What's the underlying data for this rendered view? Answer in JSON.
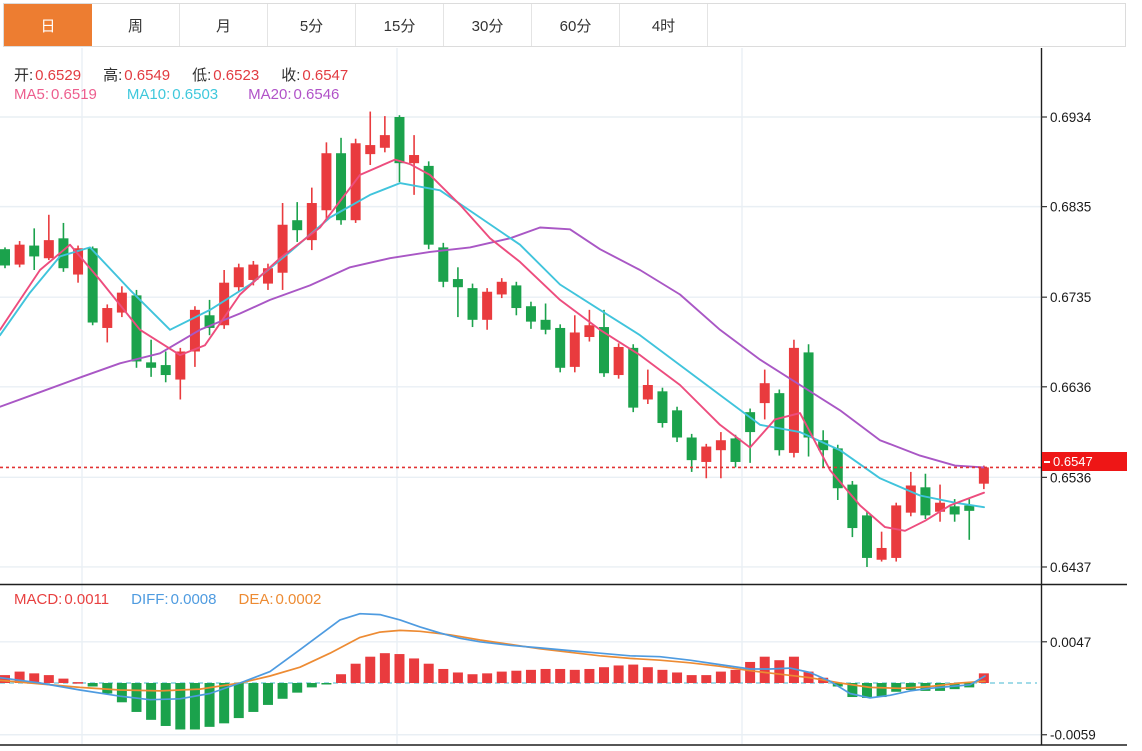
{
  "tabs": {
    "items": [
      {
        "name": "day",
        "label": "日",
        "active": true
      },
      {
        "name": "week",
        "label": "周",
        "active": false
      },
      {
        "name": "month",
        "label": "月",
        "active": false
      },
      {
        "name": "5min",
        "label": "5分",
        "active": false
      },
      {
        "name": "15min",
        "label": "15分",
        "active": false
      },
      {
        "name": "30min",
        "label": "30分",
        "active": false
      },
      {
        "name": "60min",
        "label": "60分",
        "active": false
      },
      {
        "name": "4hour",
        "label": "4时",
        "active": false
      }
    ],
    "active_color": "#ED7D31"
  },
  "ohlc_bar": {
    "label_color": "#2f2f2f",
    "value_color": "#E23B41",
    "items": [
      {
        "label": "开:",
        "value": "0.6529"
      },
      {
        "label": "高:",
        "value": "0.6549"
      },
      {
        "label": "低:",
        "value": "0.6523"
      },
      {
        "label": "收:",
        "value": "0.6547"
      }
    ]
  },
  "ma_bar": {
    "items": [
      {
        "label": "MA5:",
        "value": "0.6519",
        "color": "#ED5E8E"
      },
      {
        "label": "MA10:",
        "value": "0.6503",
        "color": "#3FC8DC"
      },
      {
        "label": "MA20:",
        "value": "0.6546",
        "color": "#B153C8"
      }
    ]
  },
  "macd_bar": {
    "items": [
      {
        "label": "MACD:",
        "value": "0.0011",
        "color": "#E84040"
      },
      {
        "label": "DIFF:",
        "value": "0.0008",
        "color": "#4E9BE0"
      },
      {
        "label": "DEA:",
        "value": "0.0002",
        "color": "#ED8B33"
      }
    ]
  },
  "price_tag": {
    "value": "0.6547",
    "price": 0.6547,
    "bg_color": "#EE1616"
  },
  "axes": {
    "main_tick_labels": [
      "0.6934",
      "0.6835",
      "0.6735",
      "0.6636",
      "0.6536",
      "0.6437"
    ],
    "macd_tick_labels": [
      "0.0047",
      "-0.0059"
    ]
  },
  "colors": {
    "up": "#E93B3E",
    "down": "#1BA24C",
    "ma5": "#ED4D7E",
    "ma10": "#40C4DC",
    "ma20": "#A957C5",
    "diff": "#4E9BE0",
    "dea": "#ED8B33",
    "grid": "#E9EFF4",
    "frame": "#1F1F1F",
    "dashed_price": "#E23232",
    "zero_dash": "#82CFE0"
  },
  "chart_data": {
    "type": "candlestick",
    "indicator": "MACD",
    "price_axis_range": [
      0.6437,
      0.6934
    ],
    "macd_axis_range": [
      -0.0059,
      0.0047
    ],
    "last_price": 0.6547,
    "candles_ohlc": [
      [
        0.6788,
        0.679,
        0.6767,
        0.677
      ],
      [
        0.6771,
        0.6797,
        0.6768,
        0.6793
      ],
      [
        0.6792,
        0.6811,
        0.6765,
        0.678
      ],
      [
        0.6778,
        0.6826,
        0.6776,
        0.6798
      ],
      [
        0.68,
        0.6817,
        0.6763,
        0.6767
      ],
      [
        0.676,
        0.6792,
        0.6751,
        0.6789
      ],
      [
        0.6789,
        0.6791,
        0.6704,
        0.6707
      ],
      [
        0.6701,
        0.6727,
        0.6685,
        0.6723
      ],
      [
        0.6718,
        0.6747,
        0.6713,
        0.674
      ],
      [
        0.6737,
        0.6743,
        0.6657,
        0.6664
      ],
      [
        0.6663,
        0.6688,
        0.6647,
        0.6657
      ],
      [
        0.666,
        0.6675,
        0.6641,
        0.6649
      ],
      [
        0.6644,
        0.6679,
        0.6622,
        0.6675
      ],
      [
        0.6675,
        0.6725,
        0.6658,
        0.6721
      ],
      [
        0.6715,
        0.6732,
        0.6693,
        0.6701
      ],
      [
        0.6704,
        0.6765,
        0.67,
        0.6751
      ],
      [
        0.6746,
        0.6772,
        0.6741,
        0.6768
      ],
      [
        0.6754,
        0.6775,
        0.6748,
        0.6771
      ],
      [
        0.675,
        0.6772,
        0.6743,
        0.6767
      ],
      [
        0.6762,
        0.6839,
        0.6743,
        0.6815
      ],
      [
        0.682,
        0.684,
        0.6796,
        0.6809
      ],
      [
        0.6798,
        0.6856,
        0.6787,
        0.6839
      ],
      [
        0.6831,
        0.6906,
        0.682,
        0.6894
      ],
      [
        0.6894,
        0.6911,
        0.6815,
        0.682
      ],
      [
        0.682,
        0.691,
        0.6817,
        0.6905
      ],
      [
        0.6893,
        0.694,
        0.6881,
        0.6903
      ],
      [
        0.69,
        0.6935,
        0.6895,
        0.6914
      ],
      [
        0.6934,
        0.6936,
        0.6862,
        0.6883
      ],
      [
        0.6883,
        0.6914,
        0.6848,
        0.6892
      ],
      [
        0.688,
        0.6885,
        0.6788,
        0.6793
      ],
      [
        0.679,
        0.6795,
        0.6746,
        0.6752
      ],
      [
        0.6755,
        0.6768,
        0.6713,
        0.6746
      ],
      [
        0.6745,
        0.675,
        0.6702,
        0.671
      ],
      [
        0.671,
        0.6745,
        0.6699,
        0.6741
      ],
      [
        0.6738,
        0.6756,
        0.6734,
        0.6752
      ],
      [
        0.6748,
        0.6752,
        0.6715,
        0.6723
      ],
      [
        0.6725,
        0.673,
        0.67,
        0.6708
      ],
      [
        0.671,
        0.6728,
        0.6694,
        0.6699
      ],
      [
        0.6701,
        0.6705,
        0.6652,
        0.6657
      ],
      [
        0.6658,
        0.6715,
        0.6652,
        0.6696
      ],
      [
        0.6691,
        0.6721,
        0.6686,
        0.6704
      ],
      [
        0.6702,
        0.6721,
        0.6647,
        0.6651
      ],
      [
        0.6649,
        0.6684,
        0.6645,
        0.668
      ],
      [
        0.6679,
        0.6683,
        0.6608,
        0.6613
      ],
      [
        0.6622,
        0.6655,
        0.6617,
        0.6638
      ],
      [
        0.6631,
        0.6635,
        0.6591,
        0.6596
      ],
      [
        0.661,
        0.6614,
        0.6575,
        0.658
      ],
      [
        0.658,
        0.6584,
        0.6542,
        0.6555
      ],
      [
        0.6553,
        0.6573,
        0.6535,
        0.657
      ],
      [
        0.6566,
        0.6586,
        0.6535,
        0.6577
      ],
      [
        0.6579,
        0.6583,
        0.6547,
        0.6553
      ],
      [
        0.6608,
        0.6612,
        0.6552,
        0.6586
      ],
      [
        0.6618,
        0.6655,
        0.66,
        0.664
      ],
      [
        0.6629,
        0.6633,
        0.656,
        0.6566
      ],
      [
        0.6563,
        0.6688,
        0.6558,
        0.6679
      ],
      [
        0.6674,
        0.6683,
        0.6559,
        0.658
      ],
      [
        0.6577,
        0.6588,
        0.6547,
        0.6566
      ],
      [
        0.6568,
        0.6572,
        0.6511,
        0.6524
      ],
      [
        0.6528,
        0.6532,
        0.647,
        0.648
      ],
      [
        0.6494,
        0.6498,
        0.6437,
        0.6447
      ],
      [
        0.6445,
        0.6476,
        0.6443,
        0.6458
      ],
      [
        0.6447,
        0.6508,
        0.6443,
        0.6505
      ],
      [
        0.6497,
        0.6542,
        0.6493,
        0.6527
      ],
      [
        0.6525,
        0.654,
        0.649,
        0.6494
      ],
      [
        0.6498,
        0.6528,
        0.6487,
        0.6508
      ],
      [
        0.6504,
        0.6512,
        0.6487,
        0.6495
      ],
      [
        0.6505,
        0.6512,
        0.6467,
        0.6499
      ],
      [
        0.6529,
        0.6549,
        0.6523,
        0.6547
      ]
    ],
    "macd_histogram": [
      0.0009,
      0.0013,
      0.0011,
      0.0009,
      0.0005,
      0.0001,
      -0.0004,
      -0.0012,
      -0.0022,
      -0.0033,
      -0.0042,
      -0.0049,
      -0.0053,
      -0.0053,
      -0.005,
      -0.0046,
      -0.004,
      -0.0033,
      -0.0025,
      -0.0018,
      -0.0011,
      -0.0005,
      -0.0001,
      0.001,
      0.0022,
      0.003,
      0.0034,
      0.0033,
      0.0028,
      0.0022,
      0.0016,
      0.0012,
      0.001,
      0.0011,
      0.0013,
      0.0014,
      0.0015,
      0.0016,
      0.0016,
      0.0015,
      0.0016,
      0.0018,
      0.002,
      0.0021,
      0.0018,
      0.0015,
      0.0012,
      0.0009,
      0.0009,
      0.0013,
      0.0015,
      0.0024,
      0.003,
      0.0026,
      0.003,
      0.0013,
      0.0006,
      -0.0004,
      -0.0016,
      -0.0017,
      -0.0016,
      -0.001,
      -0.0008,
      -0.0009,
      -0.0009,
      -0.0007,
      -0.0005,
      0.0011
    ],
    "overlays": {
      "ma5": [
        [
          0,
          0.6699
        ],
        [
          40,
          0.6765
        ],
        [
          70,
          0.6793
        ],
        [
          100,
          0.6754
        ],
        [
          140,
          0.6699
        ],
        [
          180,
          0.6671
        ],
        [
          205,
          0.6682
        ],
        [
          240,
          0.6738
        ],
        [
          280,
          0.6778
        ],
        [
          320,
          0.6812
        ],
        [
          360,
          0.687
        ],
        [
          395,
          0.6887
        ],
        [
          410,
          0.6882
        ],
        [
          430,
          0.687
        ],
        [
          460,
          0.6837
        ],
        [
          490,
          0.68
        ],
        [
          520,
          0.6774
        ],
        [
          560,
          0.6732
        ],
        [
          600,
          0.6699
        ],
        [
          640,
          0.6671
        ],
        [
          680,
          0.6638
        ],
        [
          720,
          0.6594
        ],
        [
          750,
          0.6569
        ],
        [
          775,
          0.66
        ],
        [
          800,
          0.6607
        ],
        [
          830,
          0.6544
        ],
        [
          860,
          0.6505
        ],
        [
          885,
          0.6481
        ],
        [
          905,
          0.6477
        ],
        [
          925,
          0.6488
        ],
        [
          950,
          0.6505
        ],
        [
          984,
          0.6519
        ]
      ],
      "ma10": [
        [
          0,
          0.6693
        ],
        [
          30,
          0.674
        ],
        [
          60,
          0.678
        ],
        [
          90,
          0.679
        ],
        [
          130,
          0.6743
        ],
        [
          170,
          0.6699
        ],
        [
          210,
          0.6721
        ],
        [
          250,
          0.6749
        ],
        [
          290,
          0.6785
        ],
        [
          330,
          0.6823
        ],
        [
          370,
          0.6848
        ],
        [
          400,
          0.6861
        ],
        [
          440,
          0.6853
        ],
        [
          480,
          0.6823
        ],
        [
          520,
          0.6793
        ],
        [
          560,
          0.6749
        ],
        [
          600,
          0.6721
        ],
        [
          640,
          0.6693
        ],
        [
          680,
          0.666
        ],
        [
          720,
          0.6627
        ],
        [
          760,
          0.6594
        ],
        [
          800,
          0.6586
        ],
        [
          840,
          0.6566
        ],
        [
          880,
          0.6535
        ],
        [
          920,
          0.6516
        ],
        [
          955,
          0.6508
        ],
        [
          984,
          0.6503
        ]
      ],
      "ma20": [
        [
          0,
          0.6614
        ],
        [
          40,
          0.663
        ],
        [
          82,
          0.6647
        ],
        [
          120,
          0.6662
        ],
        [
          160,
          0.6673
        ],
        [
          200,
          0.6699
        ],
        [
          240,
          0.6717
        ],
        [
          270,
          0.6732
        ],
        [
          310,
          0.6748
        ],
        [
          350,
          0.6768
        ],
        [
          390,
          0.6778
        ],
        [
          430,
          0.6785
        ],
        [
          470,
          0.679
        ],
        [
          510,
          0.68
        ],
        [
          540,
          0.6812
        ],
        [
          570,
          0.681
        ],
        [
          600,
          0.6788
        ],
        [
          640,
          0.6765
        ],
        [
          680,
          0.6738
        ],
        [
          720,
          0.6699
        ],
        [
          760,
          0.6666
        ],
        [
          800,
          0.6638
        ],
        [
          840,
          0.661
        ],
        [
          880,
          0.6577
        ],
        [
          920,
          0.656
        ],
        [
          955,
          0.6549
        ],
        [
          984,
          0.6547
        ]
      ],
      "diff": [
        [
          0,
          0.0006
        ],
        [
          40,
          0.0
        ],
        [
          80,
          -0.0008
        ],
        [
          120,
          -0.0015
        ],
        [
          150,
          -0.0019
        ],
        [
          180,
          -0.0018
        ],
        [
          210,
          -0.0012
        ],
        [
          240,
          0.0
        ],
        [
          270,
          0.0013
        ],
        [
          300,
          0.0038
        ],
        [
          320,
          0.0055
        ],
        [
          340,
          0.0072
        ],
        [
          360,
          0.0079
        ],
        [
          380,
          0.0078
        ],
        [
          400,
          0.0072
        ],
        [
          420,
          0.0064
        ],
        [
          440,
          0.0057
        ],
        [
          460,
          0.0051
        ],
        [
          480,
          0.0047
        ],
        [
          510,
          0.0043
        ],
        [
          540,
          0.004
        ],
        [
          570,
          0.0037
        ],
        [
          600,
          0.0034
        ],
        [
          630,
          0.0031
        ],
        [
          660,
          0.003
        ],
        [
          690,
          0.0026
        ],
        [
          720,
          0.0021
        ],
        [
          750,
          0.0016
        ],
        [
          770,
          0.0016
        ],
        [
          790,
          0.0017
        ],
        [
          810,
          0.0012
        ],
        [
          830,
          0.0002
        ],
        [
          850,
          -0.0012
        ],
        [
          870,
          -0.0017
        ],
        [
          890,
          -0.0014
        ],
        [
          910,
          -0.0009
        ],
        [
          930,
          -0.0006
        ],
        [
          950,
          -0.0004
        ],
        [
          970,
          -0.0002
        ],
        [
          985,
          0.0008
        ]
      ],
      "dea": [
        [
          0,
          0.0003
        ],
        [
          40,
          -0.0001
        ],
        [
          80,
          -0.0005
        ],
        [
          120,
          -0.0008
        ],
        [
          160,
          -0.0009
        ],
        [
          200,
          -0.0007
        ],
        [
          240,
          0.0
        ],
        [
          270,
          0.0008
        ],
        [
          300,
          0.0018
        ],
        [
          330,
          0.0034
        ],
        [
          360,
          0.0052
        ],
        [
          380,
          0.0058
        ],
        [
          400,
          0.006
        ],
        [
          420,
          0.0059
        ],
        [
          450,
          0.0055
        ],
        [
          480,
          0.0049
        ],
        [
          510,
          0.0044
        ],
        [
          540,
          0.0039
        ],
        [
          570,
          0.0035
        ],
        [
          600,
          0.0031
        ],
        [
          630,
          0.0028
        ],
        [
          660,
          0.0026
        ],
        [
          690,
          0.0023
        ],
        [
          720,
          0.0019
        ],
        [
          750,
          0.0014
        ],
        [
          780,
          0.001
        ],
        [
          810,
          0.0006
        ],
        [
          840,
          0.0
        ],
        [
          870,
          -0.0005
        ],
        [
          900,
          -0.0006
        ],
        [
          930,
          -0.0004
        ],
        [
          960,
          0.0
        ],
        [
          985,
          0.0002
        ]
      ]
    }
  }
}
